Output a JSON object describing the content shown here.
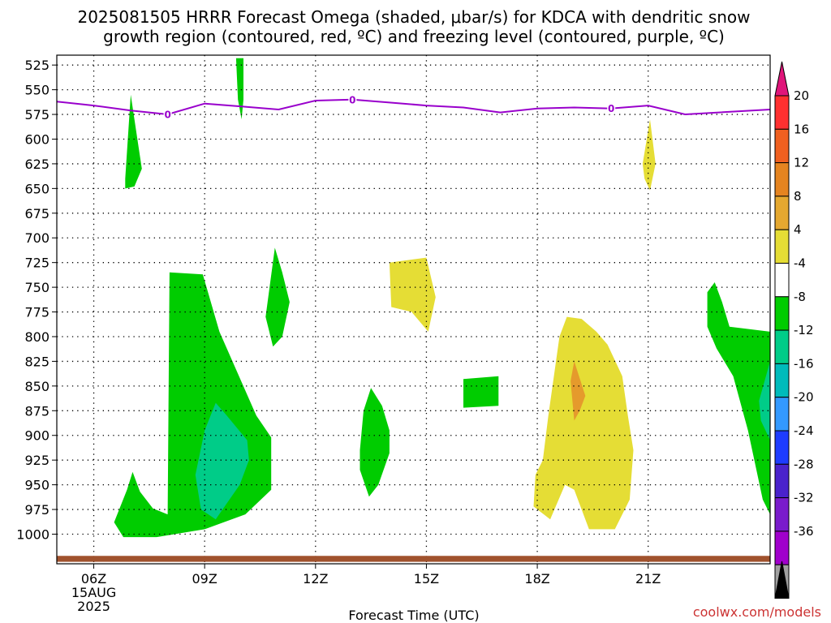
{
  "chart_data": {
    "type": "contour",
    "title_line1": "2025081505 HRRR Forecast Omega (shaded, μbar/s) for KDCA with dendritic snow",
    "title_line2": "growth region (contoured, red, ºC) and freezing level (contoured, purple, ºC)",
    "xlabel": "Forecast Time (UTC)",
    "ylabel": "",
    "credit": "coolwx.com/models",
    "x_range_hours": [
      5,
      24.3
    ],
    "y_range_hpa": [
      515,
      1030
    ],
    "x_ticks": [
      {
        "hour": 6,
        "label": "06Z",
        "date": "15AUG",
        "year": "2025"
      },
      {
        "hour": 9,
        "label": "09Z"
      },
      {
        "hour": 12,
        "label": "12Z"
      },
      {
        "hour": 15,
        "label": "15Z"
      },
      {
        "hour": 18,
        "label": "18Z"
      },
      {
        "hour": 21,
        "label": "21Z"
      }
    ],
    "y_ticks": [
      525,
      550,
      575,
      600,
      625,
      650,
      675,
      700,
      725,
      750,
      775,
      800,
      825,
      850,
      875,
      900,
      925,
      950,
      975,
      1000
    ],
    "grid": true,
    "freezing_level": {
      "label": "0",
      "color": "#9900cc",
      "points": [
        [
          5,
          562
        ],
        [
          6,
          566
        ],
        [
          7,
          571
        ],
        [
          8,
          575
        ],
        [
          9,
          564
        ],
        [
          10,
          567
        ],
        [
          11,
          570
        ],
        [
          12,
          561
        ],
        [
          13,
          560
        ],
        [
          14,
          563
        ],
        [
          15,
          566
        ],
        [
          16,
          568
        ],
        [
          17,
          573
        ],
        [
          18,
          569
        ],
        [
          19,
          568
        ],
        [
          20,
          569
        ],
        [
          21,
          566
        ],
        [
          22,
          575
        ],
        [
          24.3,
          570
        ]
      ],
      "label_hours": [
        8,
        13,
        20
      ]
    },
    "surface": {
      "color": "#a0522d",
      "pressure_top": 1022,
      "pressure_bottom": 1028
    },
    "omega_regions": [
      {
        "level": "-4 to -8",
        "color": "#00cc00",
        "points": [
          [
            6.55,
            988
          ],
          [
            6.9,
            955
          ],
          [
            7.05,
            937
          ],
          [
            7.25,
            957
          ],
          [
            7.6,
            974
          ],
          [
            8.0,
            980
          ],
          [
            8.05,
            735
          ],
          [
            8.95,
            737
          ],
          [
            9.4,
            795
          ],
          [
            10.4,
            880
          ],
          [
            10.8,
            902
          ],
          [
            10.8,
            955
          ],
          [
            10.1,
            980
          ],
          [
            9.0,
            995
          ],
          [
            7.7,
            1003
          ],
          [
            6.8,
            1003
          ]
        ]
      },
      {
        "level": "-4 to -8",
        "color": "#00cc00",
        "points": [
          [
            6.85,
            640
          ],
          [
            7.0,
            555
          ],
          [
            7.2,
            605
          ],
          [
            7.3,
            630
          ],
          [
            7.1,
            648
          ],
          [
            6.85,
            650
          ]
        ]
      },
      {
        "level": "-4 to -8",
        "color": "#00cc00",
        "points": [
          [
            9.85,
            518
          ],
          [
            10.05,
            518
          ],
          [
            10.05,
            560
          ],
          [
            10.0,
            580
          ],
          [
            9.9,
            560
          ]
        ]
      },
      {
        "level": "-4 to -8",
        "color": "#00cc00",
        "points": [
          [
            10.65,
            780
          ],
          [
            10.9,
            710
          ],
          [
            11.1,
            735
          ],
          [
            11.3,
            765
          ],
          [
            11.1,
            800
          ],
          [
            10.85,
            810
          ]
        ]
      },
      {
        "level": "-4 to -8",
        "color": "#00cc00",
        "points": [
          [
            13.2,
            915
          ],
          [
            13.3,
            875
          ],
          [
            13.5,
            852
          ],
          [
            13.8,
            870
          ],
          [
            14.0,
            895
          ],
          [
            14.0,
            918
          ],
          [
            13.7,
            950
          ],
          [
            13.45,
            962
          ],
          [
            13.2,
            935
          ]
        ]
      },
      {
        "level": "-4 to -8",
        "color": "#00cc00",
        "points": [
          [
            16.0,
            843
          ],
          [
            16.95,
            840
          ],
          [
            16.95,
            870
          ],
          [
            16.0,
            872
          ]
        ]
      },
      {
        "level": "-4 to -8",
        "color": "#00cc00",
        "points": [
          [
            22.6,
            755
          ],
          [
            22.8,
            745
          ],
          [
            23.0,
            765
          ],
          [
            23.2,
            790
          ],
          [
            24.3,
            795
          ],
          [
            24.3,
            980
          ],
          [
            24.1,
            965
          ],
          [
            23.7,
            895
          ],
          [
            23.3,
            840
          ],
          [
            22.85,
            812
          ],
          [
            22.6,
            790
          ]
        ]
      },
      {
        "level": "-8 to -12",
        "color": "#00cc88",
        "points": [
          [
            9.0,
            895
          ],
          [
            9.3,
            867
          ],
          [
            9.6,
            880
          ],
          [
            10.15,
            905
          ],
          [
            10.2,
            925
          ],
          [
            9.95,
            950
          ],
          [
            9.3,
            985
          ],
          [
            8.9,
            975
          ],
          [
            8.75,
            940
          ]
        ]
      },
      {
        "level": "-8 to -12",
        "color": "#00cc88",
        "points": [
          [
            24.0,
            865
          ],
          [
            24.3,
            825
          ],
          [
            24.3,
            905
          ],
          [
            24.05,
            885
          ]
        ]
      },
      {
        "level": "4 to 8",
        "color": "#e5dd35",
        "points": [
          [
            14.0,
            725
          ],
          [
            15.0,
            720
          ],
          [
            15.25,
            760
          ],
          [
            15.05,
            795
          ],
          [
            14.6,
            775
          ],
          [
            14.05,
            770
          ]
        ]
      },
      {
        "level": "4 to 8",
        "color": "#e5dd35",
        "points": [
          [
            20.85,
            625
          ],
          [
            21.05,
            580
          ],
          [
            21.2,
            625
          ],
          [
            21.05,
            652
          ],
          [
            20.9,
            640
          ]
        ]
      },
      {
        "level": "4 to 8",
        "color": "#e5dd35",
        "points": [
          [
            18.3,
            880
          ],
          [
            18.6,
            800
          ],
          [
            18.8,
            780
          ],
          [
            19.2,
            782
          ],
          [
            19.6,
            795
          ],
          [
            19.9,
            808
          ],
          [
            20.3,
            840
          ],
          [
            20.45,
            880
          ],
          [
            20.6,
            915
          ],
          [
            20.5,
            965
          ],
          [
            20.1,
            995
          ],
          [
            19.4,
            995
          ],
          [
            19.0,
            955
          ],
          [
            18.75,
            950
          ],
          [
            18.35,
            985
          ],
          [
            17.9,
            972
          ],
          [
            17.95,
            940
          ],
          [
            18.15,
            925
          ]
        ]
      },
      {
        "level": "8 to 12",
        "color": "#e59a2c",
        "points": [
          [
            18.9,
            845
          ],
          [
            19.0,
            825
          ],
          [
            19.3,
            860
          ],
          [
            19.15,
            875
          ],
          [
            19.0,
            885
          ]
        ]
      }
    ],
    "colorbar": {
      "bands": [
        {
          "color": "#e0157a"
        },
        {
          "color": "#ff3030"
        },
        {
          "color": "#f06020"
        },
        {
          "color": "#e58420"
        },
        {
          "color": "#e5a830"
        },
        {
          "color": "#e5dd35"
        },
        {
          "color": "#ffffff"
        },
        {
          "color": "#00cc00"
        },
        {
          "color": "#00cc88"
        },
        {
          "color": "#00bbbb"
        },
        {
          "color": "#3399ff"
        },
        {
          "color": "#1e3cff"
        },
        {
          "color": "#4a22cc"
        },
        {
          "color": "#7a1ccc"
        },
        {
          "color": "#a000cc"
        },
        {
          "color": "#a0a0a0"
        },
        {
          "color": "#000000"
        }
      ],
      "labels": [
        "20",
        "16",
        "12",
        "8",
        "4",
        "-4",
        "-8",
        "-12",
        "-16",
        "-20",
        "-24",
        "-28",
        "-32",
        "-36"
      ]
    }
  }
}
